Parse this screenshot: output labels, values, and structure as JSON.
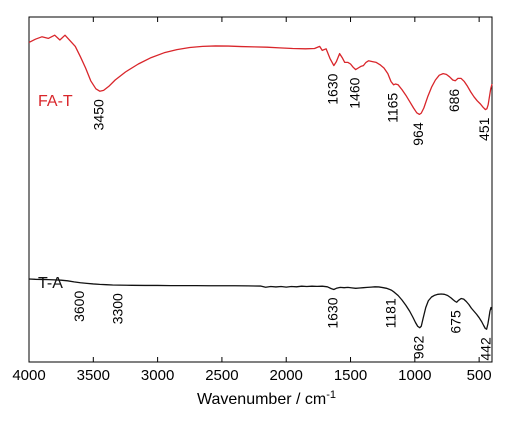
{
  "chart_data": {
    "type": "line",
    "title": "",
    "xlabel": "Wavenumber / cm",
    "xlabel_superscript": "-1",
    "ylabel": "",
    "xlim": [
      4000,
      400
    ],
    "x_reversed": true,
    "x_ticks": [
      4000,
      3500,
      3000,
      2500,
      2000,
      1500,
      1000,
      500
    ],
    "y_ticks_visible": false,
    "grid": false,
    "colors": {
      "FA-T": "#d9262b",
      "T-A": "#111111"
    },
    "series": [
      {
        "name": "FA-T",
        "color": "#d9262b",
        "points": [
          [
            4000,
            0.86
          ],
          [
            3950,
            0.88
          ],
          [
            3900,
            0.895
          ],
          [
            3850,
            0.885
          ],
          [
            3800,
            0.905
          ],
          [
            3760,
            0.875
          ],
          [
            3720,
            0.905
          ],
          [
            3680,
            0.87
          ],
          [
            3640,
            0.835
          ],
          [
            3600,
            0.77
          ],
          [
            3560,
            0.7
          ],
          [
            3520,
            0.62
          ],
          [
            3480,
            0.57
          ],
          [
            3450,
            0.555
          ],
          [
            3420,
            0.56
          ],
          [
            3380,
            0.585
          ],
          [
            3330,
            0.625
          ],
          [
            3250,
            0.675
          ],
          [
            3150,
            0.725
          ],
          [
            3050,
            0.765
          ],
          [
            2950,
            0.795
          ],
          [
            2850,
            0.815
          ],
          [
            2750,
            0.828
          ],
          [
            2650,
            0.835
          ],
          [
            2550,
            0.838
          ],
          [
            2450,
            0.837
          ],
          [
            2350,
            0.834
          ],
          [
            2250,
            0.832
          ],
          [
            2150,
            0.83
          ],
          [
            2050,
            0.826
          ],
          [
            1950,
            0.822
          ],
          [
            1850,
            0.82
          ],
          [
            1780,
            0.822
          ],
          [
            1740,
            0.835
          ],
          [
            1720,
            0.81
          ],
          [
            1690,
            0.82
          ],
          [
            1660,
            0.76
          ],
          [
            1630,
            0.715
          ],
          [
            1610,
            0.74
          ],
          [
            1585,
            0.79
          ],
          [
            1565,
            0.765
          ],
          [
            1545,
            0.735
          ],
          [
            1520,
            0.735
          ],
          [
            1500,
            0.725
          ],
          [
            1480,
            0.705
          ],
          [
            1460,
            0.69
          ],
          [
            1440,
            0.7
          ],
          [
            1420,
            0.71
          ],
          [
            1400,
            0.715
          ],
          [
            1380,
            0.735
          ],
          [
            1360,
            0.745
          ],
          [
            1330,
            0.74
          ],
          [
            1300,
            0.735
          ],
          [
            1270,
            0.72
          ],
          [
            1240,
            0.7
          ],
          [
            1210,
            0.665
          ],
          [
            1185,
            0.615
          ],
          [
            1165,
            0.595
          ],
          [
            1150,
            0.6
          ],
          [
            1130,
            0.595
          ],
          [
            1100,
            0.565
          ],
          [
            1070,
            0.53
          ],
          [
            1040,
            0.49
          ],
          [
            1010,
            0.45
          ],
          [
            985,
            0.42
          ],
          [
            964,
            0.41
          ],
          [
            950,
            0.418
          ],
          [
            930,
            0.45
          ],
          [
            900,
            0.52
          ],
          [
            870,
            0.58
          ],
          [
            840,
            0.625
          ],
          [
            810,
            0.655
          ],
          [
            780,
            0.665
          ],
          [
            755,
            0.66
          ],
          [
            730,
            0.645
          ],
          [
            705,
            0.625
          ],
          [
            686,
            0.62
          ],
          [
            665,
            0.635
          ],
          [
            640,
            0.635
          ],
          [
            615,
            0.615
          ],
          [
            590,
            0.585
          ],
          [
            565,
            0.55
          ],
          [
            540,
            0.52
          ],
          [
            515,
            0.495
          ],
          [
            490,
            0.475
          ],
          [
            470,
            0.455
          ],
          [
            451,
            0.44
          ],
          [
            440,
            0.445
          ],
          [
            430,
            0.47
          ],
          [
            420,
            0.52
          ],
          [
            410,
            0.57
          ],
          [
            400,
            0.6
          ]
        ]
      },
      {
        "name": "T-A",
        "color": "#111111",
        "points": [
          [
            4000,
            0.44
          ],
          [
            3950,
            0.438
          ],
          [
            3900,
            0.437
          ],
          [
            3850,
            0.436
          ],
          [
            3800,
            0.434
          ],
          [
            3750,
            0.432
          ],
          [
            3700,
            0.428
          ],
          [
            3650,
            0.421
          ],
          [
            3600,
            0.415
          ],
          [
            3550,
            0.411
          ],
          [
            3500,
            0.407
          ],
          [
            3450,
            0.404
          ],
          [
            3400,
            0.402
          ],
          [
            3350,
            0.4
          ],
          [
            3300,
            0.399
          ],
          [
            3200,
            0.398
          ],
          [
            3100,
            0.397
          ],
          [
            3000,
            0.397
          ],
          [
            2900,
            0.396
          ],
          [
            2800,
            0.396
          ],
          [
            2700,
            0.396
          ],
          [
            2600,
            0.395
          ],
          [
            2500,
            0.395
          ],
          [
            2400,
            0.395
          ],
          [
            2300,
            0.394
          ],
          [
            2200,
            0.393
          ],
          [
            2160,
            0.385
          ],
          [
            2120,
            0.39
          ],
          [
            2080,
            0.387
          ],
          [
            2040,
            0.39
          ],
          [
            2000,
            0.386
          ],
          [
            1960,
            0.39
          ],
          [
            1920,
            0.388
          ],
          [
            1880,
            0.392
          ],
          [
            1840,
            0.39
          ],
          [
            1800,
            0.392
          ],
          [
            1760,
            0.391
          ],
          [
            1720,
            0.392
          ],
          [
            1680,
            0.388
          ],
          [
            1650,
            0.376
          ],
          [
            1630,
            0.37
          ],
          [
            1610,
            0.378
          ],
          [
            1580,
            0.384
          ],
          [
            1550,
            0.382
          ],
          [
            1520,
            0.384
          ],
          [
            1490,
            0.381
          ],
          [
            1460,
            0.378
          ],
          [
            1430,
            0.38
          ],
          [
            1400,
            0.382
          ],
          [
            1370,
            0.384
          ],
          [
            1340,
            0.386
          ],
          [
            1310,
            0.388
          ],
          [
            1280,
            0.387
          ],
          [
            1250,
            0.383
          ],
          [
            1220,
            0.378
          ],
          [
            1200,
            0.372
          ],
          [
            1181,
            0.365
          ],
          [
            1160,
            0.352
          ],
          [
            1130,
            0.33
          ],
          [
            1100,
            0.3
          ],
          [
            1070,
            0.265
          ],
          [
            1040,
            0.225
          ],
          [
            1015,
            0.185
          ],
          [
            995,
            0.15
          ],
          [
            978,
            0.125
          ],
          [
            962,
            0.115
          ],
          [
            950,
            0.125
          ],
          [
            935,
            0.18
          ],
          [
            915,
            0.25
          ],
          [
            895,
            0.295
          ],
          [
            870,
            0.32
          ],
          [
            845,
            0.332
          ],
          [
            820,
            0.338
          ],
          [
            795,
            0.34
          ],
          [
            770,
            0.338
          ],
          [
            745,
            0.33
          ],
          [
            720,
            0.315
          ],
          [
            700,
            0.3
          ],
          [
            685,
            0.29
          ],
          [
            675,
            0.285
          ],
          [
            660,
            0.298
          ],
          [
            640,
            0.31
          ],
          [
            620,
            0.306
          ],
          [
            600,
            0.29
          ],
          [
            580,
            0.27
          ],
          [
            560,
            0.245
          ],
          [
            540,
            0.225
          ],
          [
            520,
            0.205
          ],
          [
            500,
            0.182
          ],
          [
            480,
            0.155
          ],
          [
            465,
            0.13
          ],
          [
            452,
            0.11
          ],
          [
            442,
            0.105
          ],
          [
            432,
            0.14
          ],
          [
            424,
            0.18
          ],
          [
            416,
            0.225
          ],
          [
            408,
            0.25
          ],
          [
            400,
            0.235
          ]
        ]
      }
    ],
    "series_labels": [
      {
        "text": "FA-T",
        "series": "FA-T"
      },
      {
        "text": "T-A",
        "series": "T-A"
      }
    ],
    "annotations": [
      {
        "text": "3450",
        "x": 3450,
        "series": "FA-T"
      },
      {
        "text": "1630",
        "x": 1630,
        "series": "FA-T"
      },
      {
        "text": "1460",
        "x": 1460,
        "series": "FA-T"
      },
      {
        "text": "1165",
        "x": 1165,
        "series": "FA-T"
      },
      {
        "text": "964",
        "x": 964,
        "series": "FA-T"
      },
      {
        "text": "686",
        "x": 686,
        "series": "FA-T"
      },
      {
        "text": "451",
        "x": 451,
        "series": "FA-T"
      },
      {
        "text": "3600",
        "x": 3600,
        "series": "T-A"
      },
      {
        "text": "3300",
        "x": 3300,
        "series": "T-A"
      },
      {
        "text": "1630",
        "x": 1630,
        "series": "T-A"
      },
      {
        "text": "1181",
        "x": 1181,
        "series": "T-A"
      },
      {
        "text": "962",
        "x": 962,
        "series": "T-A"
      },
      {
        "text": "675",
        "x": 675,
        "series": "T-A"
      },
      {
        "text": "442",
        "x": 442,
        "series": "T-A"
      }
    ]
  }
}
